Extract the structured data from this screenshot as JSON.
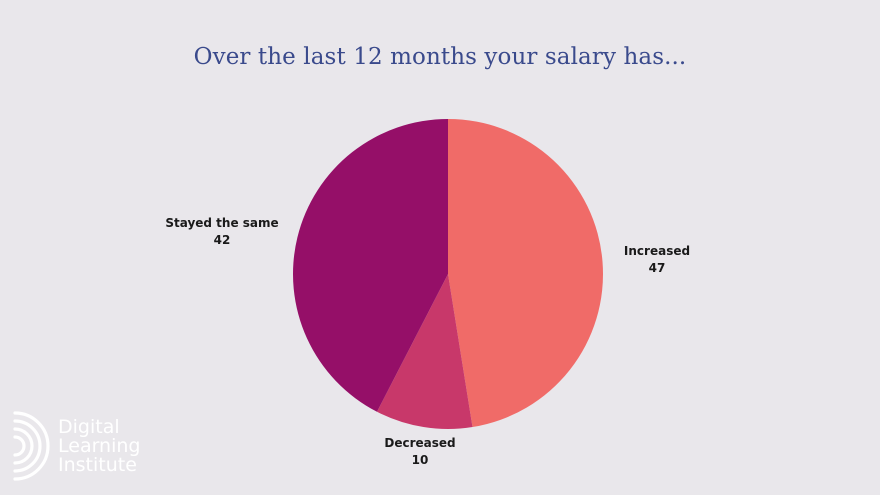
{
  "title": "Over the last 12 months your salary has...",
  "brand": {
    "logo_icon": "concentric-arcs-icon",
    "line1": "Digital",
    "line2": "Learning",
    "line3": "Institute"
  },
  "colors": {
    "background": "#e9e7eb",
    "title": "#3a4a8c",
    "increased": "#f06b68",
    "decreased": "#c8386a",
    "stayed_same": "#950f68"
  },
  "chart_data": {
    "type": "pie",
    "title": "Over the last 12 months your salary has...",
    "slices": [
      {
        "label": "Increased",
        "value": 47,
        "color": "#f06b68"
      },
      {
        "label": "Decreased",
        "value": 10,
        "color": "#c8386a"
      },
      {
        "label": "Stayed the same",
        "value": 42,
        "color": "#950f68"
      }
    ],
    "start_angle": "12 o'clock",
    "direction": "clockwise",
    "legend": "none",
    "labels": "outside"
  }
}
